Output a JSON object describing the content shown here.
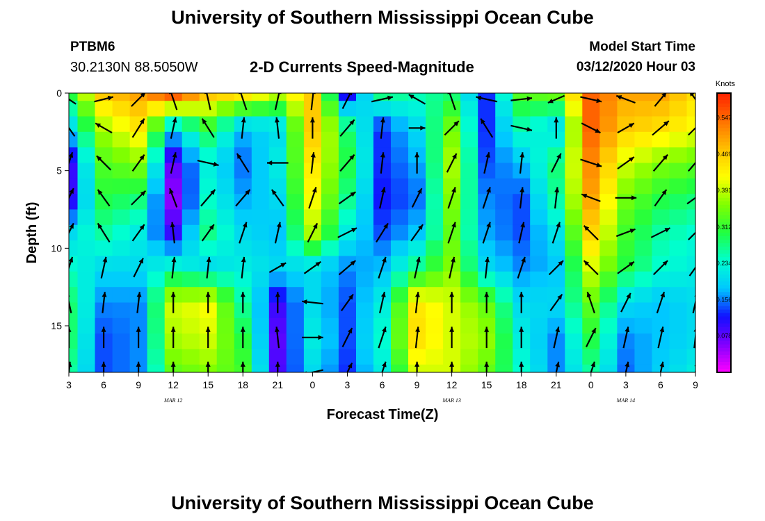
{
  "header": {
    "main_title": "University of Southern Mississippi Ocean Cube",
    "station": "PTBM6",
    "coords": "30.2130N 88.5050W",
    "subtitle": "2-D Currents Speed-Magnitude",
    "model_start_label": "Model Start Time",
    "model_start_value": "03/12/2020 Hour 03"
  },
  "footer": {
    "title": "University of Southern Mississippi Ocean Cube"
  },
  "colors": {
    "scale": [
      "#ff00ff",
      "#8000ff",
      "#1010ff",
      "#00c8ff",
      "#00ffd0",
      "#20ff40",
      "#80ff00",
      "#ffff00",
      "#ffc000",
      "#ff7000",
      "#ff2000"
    ]
  },
  "chart_data": {
    "type": "heatmap",
    "xlabel": "Forecast Time(Z)",
    "ylabel": "Depth (ft)",
    "x_tick_labels": [
      "3",
      "6",
      "9",
      "12",
      "15",
      "18",
      "21",
      "0",
      "3",
      "6",
      "9",
      "12",
      "15",
      "18",
      "21",
      "0",
      "3",
      "6",
      "9"
    ],
    "day_labels": [
      {
        "label": "MAR 12",
        "tick_index": 3
      },
      {
        "label": "MAR 13",
        "tick_index": 11
      },
      {
        "label": "MAR 14",
        "tick_index": 16
      }
    ],
    "x_range_hours": [
      3,
      57
    ],
    "y_ticks": [
      0,
      5,
      10,
      15
    ],
    "ylim": [
      0,
      18
    ],
    "colorbar": {
      "title": "Knots",
      "ticks": [
        "0.547",
        "0.469",
        "0.391",
        "0.312",
        "0.234",
        "0.156",
        "0.078"
      ],
      "range": [
        0,
        0.6
      ]
    },
    "time_columns_hours": [
      3,
      6,
      9,
      12,
      15,
      18,
      21,
      24,
      27,
      30,
      33,
      36,
      39,
      42,
      45,
      48,
      51,
      54,
      57
    ],
    "speed_knots": [
      [
        0.3,
        0.47,
        0.5,
        0.55,
        0.47,
        0.44,
        0.38,
        0.47,
        0.12,
        0.27,
        0.25,
        0.28,
        0.13,
        0.33,
        0.34,
        0.55,
        0.5,
        0.5,
        0.45
      ],
      [
        0.2,
        0.38,
        0.44,
        0.2,
        0.3,
        0.18,
        0.2,
        0.47,
        0.28,
        0.13,
        0.2,
        0.35,
        0.13,
        0.25,
        0.2,
        0.55,
        0.47,
        0.45,
        0.42
      ],
      [
        0.1,
        0.33,
        0.36,
        0.08,
        0.22,
        0.15,
        0.22,
        0.44,
        0.3,
        0.13,
        0.17,
        0.38,
        0.14,
        0.18,
        0.28,
        0.52,
        0.4,
        0.36,
        0.34
      ],
      [
        0.1,
        0.3,
        0.28,
        0.05,
        0.24,
        0.17,
        0.2,
        0.42,
        0.27,
        0.12,
        0.15,
        0.36,
        0.16,
        0.14,
        0.26,
        0.5,
        0.35,
        0.3,
        0.28
      ],
      [
        0.2,
        0.26,
        0.22,
        0.1,
        0.27,
        0.2,
        0.18,
        0.38,
        0.22,
        0.14,
        0.18,
        0.34,
        0.17,
        0.14,
        0.21,
        0.46,
        0.32,
        0.26,
        0.24
      ],
      [
        0.24,
        0.2,
        0.2,
        0.24,
        0.2,
        0.22,
        0.2,
        0.2,
        0.16,
        0.18,
        0.27,
        0.36,
        0.2,
        0.16,
        0.18,
        0.4,
        0.3,
        0.24,
        0.22
      ],
      [
        0.28,
        0.16,
        0.16,
        0.4,
        0.42,
        0.26,
        0.1,
        0.2,
        0.14,
        0.22,
        0.44,
        0.4,
        0.34,
        0.2,
        0.2,
        0.34,
        0.2,
        0.18,
        0.2
      ],
      [
        0.28,
        0.14,
        0.16,
        0.38,
        0.4,
        0.3,
        0.08,
        0.22,
        0.14,
        0.24,
        0.45,
        0.4,
        0.37,
        0.22,
        0.16,
        0.3,
        0.16,
        0.18,
        0.2
      ],
      [
        0.26,
        0.14,
        0.16,
        0.34,
        0.36,
        0.32,
        0.09,
        0.2,
        0.13,
        0.22,
        0.4,
        0.4,
        0.34,
        0.24,
        0.16,
        0.26,
        0.15,
        0.19,
        0.22
      ]
    ],
    "vectors": [
      [
        [
          -0.6,
          -0.4
        ],
        [
          0.8,
          -0.2
        ],
        [
          0.6,
          -0.6
        ],
        [
          -0.3,
          -0.9
        ],
        [
          -0.2,
          -0.9
        ],
        [
          -0.3,
          -0.9
        ],
        [
          0.2,
          -0.9
        ],
        [
          0.1,
          -0.9
        ],
        [
          0.4,
          -0.8
        ],
        [
          0.9,
          -0.2
        ],
        [
          -0.7,
          -0.4
        ],
        [
          -0.3,
          -0.9
        ],
        [
          -0.9,
          -0.2
        ],
        [
          0.9,
          -0.1
        ],
        [
          -0.7,
          0.3
        ],
        [
          0.9,
          0.2
        ],
        [
          -0.8,
          -0.3
        ],
        [
          0.5,
          -0.6
        ],
        [
          -0.5,
          -0.7
        ]
      ],
      [
        [
          -0.5,
          -0.7
        ],
        [
          -0.7,
          -0.4
        ],
        [
          0.5,
          -0.8
        ],
        [
          0.2,
          -0.9
        ],
        [
          -0.5,
          -0.8
        ],
        [
          0.1,
          -0.9
        ],
        [
          -0.1,
          -0.9
        ],
        [
          0.0,
          -0.9
        ],
        [
          0.6,
          -0.7
        ],
        [
          0.1,
          -0.9
        ],
        [
          0.7,
          0.0
        ],
        [
          0.6,
          -0.6
        ],
        [
          -0.5,
          -0.8
        ],
        [
          0.9,
          0.2
        ],
        [
          0.0,
          -0.9
        ],
        [
          0.8,
          0.4
        ],
        [
          0.7,
          -0.4
        ],
        [
          0.7,
          -0.6
        ],
        [
          0.6,
          -0.6
        ]
      ],
      [
        [
          0.3,
          -0.9
        ],
        [
          -0.6,
          -0.6
        ],
        [
          0.5,
          -0.7
        ],
        [
          0.2,
          -0.9
        ],
        [
          0.9,
          0.2
        ],
        [
          -0.5,
          -0.8
        ],
        [
          -0.9,
          0.0
        ],
        [
          0.1,
          -0.9
        ],
        [
          0.6,
          -0.7
        ],
        [
          0.1,
          -0.9
        ],
        [
          0.0,
          -0.9
        ],
        [
          0.4,
          -0.8
        ],
        [
          0.2,
          -0.9
        ],
        [
          0.1,
          -0.9
        ],
        [
          0.4,
          -0.8
        ],
        [
          0.9,
          0.3
        ],
        [
          0.7,
          -0.5
        ],
        [
          0.6,
          -0.7
        ],
        [
          0.6,
          -0.7
        ]
      ],
      [
        [
          0.4,
          -0.8
        ],
        [
          -0.5,
          -0.7
        ],
        [
          0.6,
          -0.6
        ],
        [
          -0.3,
          -0.8
        ],
        [
          0.6,
          -0.7
        ],
        [
          0.6,
          -0.7
        ],
        [
          -0.5,
          -0.7
        ],
        [
          0.3,
          -0.9
        ],
        [
          0.7,
          -0.5
        ],
        [
          0.2,
          -0.9
        ],
        [
          0.4,
          -0.8
        ],
        [
          0.3,
          -0.9
        ],
        [
          0.3,
          -0.9
        ],
        [
          0.1,
          -0.9
        ],
        [
          0.1,
          -0.9
        ],
        [
          -0.8,
          -0.3
        ],
        [
          0.9,
          0.0
        ],
        [
          0.5,
          -0.7
        ],
        [
          0.7,
          -0.5
        ]
      ],
      [
        [
          0.4,
          -0.8
        ],
        [
          -0.5,
          -0.8
        ],
        [
          0.5,
          -0.7
        ],
        [
          -0.1,
          -0.9
        ],
        [
          0.5,
          -0.7
        ],
        [
          0.3,
          -0.9
        ],
        [
          0.2,
          -0.9
        ],
        [
          0.4,
          -0.8
        ],
        [
          0.8,
          -0.4
        ],
        [
          0.5,
          -0.8
        ],
        [
          0.5,
          -0.7
        ],
        [
          0.3,
          -0.9
        ],
        [
          0.3,
          -0.9
        ],
        [
          0.2,
          -0.9
        ],
        [
          0.3,
          -0.9
        ],
        [
          -0.6,
          -0.6
        ],
        [
          0.8,
          -0.3
        ],
        [
          0.8,
          -0.4
        ],
        [
          0.6,
          -0.6
        ]
      ],
      [
        [
          0.3,
          -0.9
        ],
        [
          0.2,
          -0.9
        ],
        [
          0.4,
          -0.8
        ],
        [
          0.1,
          -0.9
        ],
        [
          0.1,
          -0.9
        ],
        [
          0.1,
          -0.9
        ],
        [
          0.7,
          -0.4
        ],
        [
          0.7,
          -0.5
        ],
        [
          0.7,
          -0.6
        ],
        [
          0.3,
          -0.9
        ],
        [
          0.2,
          -0.9
        ],
        [
          0.2,
          -0.9
        ],
        [
          0.1,
          -0.9
        ],
        [
          0.3,
          -0.9
        ],
        [
          0.6,
          -0.6
        ],
        [
          -0.6,
          -0.6
        ],
        [
          0.7,
          -0.5
        ],
        [
          0.6,
          -0.6
        ],
        [
          0.5,
          -0.7
        ]
      ],
      [
        [
          -0.2,
          -0.9
        ],
        [
          0.1,
          -0.9
        ],
        [
          0.1,
          -0.9
        ],
        [
          0.0,
          -0.9
        ],
        [
          0.0,
          -0.9
        ],
        [
          0.0,
          -0.9
        ],
        [
          0.0,
          -0.9
        ],
        [
          -0.9,
          -0.1
        ],
        [
          0.5,
          -0.7
        ],
        [
          0.2,
          -0.9
        ],
        [
          0.1,
          -0.9
        ],
        [
          0.0,
          -0.9
        ],
        [
          0.0,
          -0.9
        ],
        [
          0.0,
          -0.9
        ],
        [
          0.5,
          -0.7
        ],
        [
          -0.3,
          -0.9
        ],
        [
          0.4,
          -0.8
        ],
        [
          0.3,
          -0.9
        ],
        [
          0.2,
          -0.9
        ]
      ],
      [
        [
          0.0,
          -0.9
        ],
        [
          0.0,
          -0.9
        ],
        [
          0.0,
          -0.9
        ],
        [
          0.0,
          -0.9
        ],
        [
          0.0,
          -0.9
        ],
        [
          0.0,
          -0.9
        ],
        [
          -0.1,
          -0.9
        ],
        [
          0.9,
          0.0
        ],
        [
          0.4,
          -0.8
        ],
        [
          0.3,
          -0.9
        ],
        [
          0.1,
          -0.9
        ],
        [
          0.0,
          -0.9
        ],
        [
          0.0,
          -0.9
        ],
        [
          0.0,
          -0.9
        ],
        [
          0.2,
          -0.9
        ],
        [
          0.4,
          -0.8
        ],
        [
          0.2,
          -0.9
        ],
        [
          0.2,
          -0.9
        ],
        [
          0.1,
          -0.9
        ]
      ],
      [
        [
          0.1,
          -0.9
        ],
        [
          0.0,
          -0.9
        ],
        [
          0.0,
          -0.9
        ],
        [
          0.0,
          -0.9
        ],
        [
          0.0,
          -0.9
        ],
        [
          0.0,
          -0.9
        ],
        [
          0.0,
          -0.9
        ],
        [
          -0.9,
          0.2
        ],
        [
          0.4,
          -0.8
        ],
        [
          0.3,
          -0.9
        ],
        [
          0.0,
          -0.9
        ],
        [
          0.0,
          -0.9
        ],
        [
          0.0,
          -0.9
        ],
        [
          0.0,
          -0.9
        ],
        [
          0.2,
          -0.9
        ],
        [
          0.3,
          -0.9
        ],
        [
          0.2,
          -0.9
        ],
        [
          0.2,
          -0.9
        ],
        [
          0.2,
          -0.9
        ]
      ]
    ]
  }
}
